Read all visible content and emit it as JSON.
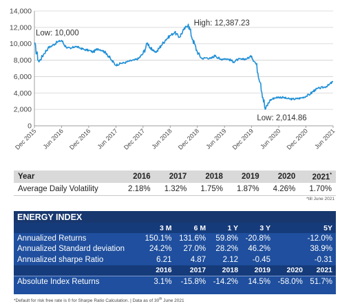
{
  "chart_data": {
    "type": "line",
    "title": "",
    "xlabel": "",
    "ylabel": "",
    "ylim": [
      0,
      14000
    ],
    "yticks": [
      0,
      2000,
      4000,
      6000,
      8000,
      10000,
      12000,
      14000
    ],
    "ytick_labels": [
      "0",
      "2,000",
      "4,000",
      "6,000",
      "8,000",
      "10,000",
      "12,000",
      "14,000"
    ],
    "xticks": [
      "Dec 2015",
      "Jun 2016",
      "Dec 2016",
      "Jun 2017",
      "Dec 2017",
      "Jun 2018",
      "Dec 2018",
      "Jun 2019",
      "Dec 2019",
      "Jun 2020",
      "Dec 2020",
      "Jun 2021"
    ],
    "line_color": "#1f8fd6",
    "series": [
      {
        "x": [
          "Dec 2015",
          "Jan 2016",
          "Feb 2016",
          "Mar 2016",
          "Apr 2016",
          "May 2016",
          "Jun 2016",
          "Jul 2016",
          "Aug 2016",
          "Sep 2016",
          "Oct 2016",
          "Nov 2016",
          "Dec 2016",
          "Jan 2017",
          "Feb 2017",
          "Mar 2017",
          "Apr 2017",
          "May 2017",
          "Jun 2017",
          "Jul 2017",
          "Aug 2017",
          "Sep 2017",
          "Oct 2017",
          "Nov 2017",
          "Dec 2017",
          "Jan 2018",
          "Feb 2018",
          "Mar 2018",
          "Apr 2018",
          "May 2018",
          "Jun 2018",
          "Jul 2018",
          "Aug 2018",
          "Sep 2018",
          "Oct 2018",
          "Nov 2018",
          "Dec 2018",
          "Jan 2019",
          "Feb 2019",
          "Mar 2019",
          "Apr 2019",
          "May 2019",
          "Jun 2019",
          "Jul 2019",
          "Aug 2019",
          "Sep 2019",
          "Oct 2019",
          "Nov 2019",
          "Dec 2019",
          "Jan 2020",
          "Feb 2020",
          "Mar 2020",
          "Apr 2020",
          "May 2020",
          "Jun 2020",
          "Jul 2020",
          "Aug 2020",
          "Sep 2020",
          "Oct 2020",
          "Nov 2020",
          "Dec 2020",
          "Jan 2021",
          "Feb 2021",
          "Mar 2021",
          "Apr 2021",
          "May 2021",
          "Jun 2021"
        ],
        "values": [
          10000,
          7800,
          8700,
          9500,
          9800,
          10200,
          10400,
          9600,
          9400,
          9700,
          9500,
          9300,
          9200,
          9000,
          9400,
          9200,
          8800,
          8000,
          7400,
          7600,
          7700,
          7900,
          8000,
          8200,
          8800,
          10100,
          9200,
          9000,
          9800,
          10500,
          11000,
          11400,
          10800,
          11700,
          12387.23,
          10500,
          9000,
          8200,
          8300,
          8200,
          8600,
          8100,
          8200,
          8100,
          7800,
          8100,
          8100,
          8200,
          8500,
          7500,
          5200,
          2014.86,
          3100,
          3400,
          3500,
          3450,
          3300,
          3250,
          3300,
          3400,
          3600,
          3900,
          4400,
          4600,
          4700,
          4950,
          5400
        ]
      }
    ],
    "annotations": [
      {
        "text": "High: 12,387.23",
        "x": "Oct 2018",
        "y": 12387.23
      },
      {
        "text": "Low: 10,000",
        "x": "Dec 2015",
        "y": 10000
      },
      {
        "text": "Low: 2,014.86",
        "x": "Mar 2020",
        "y": 2014.86
      }
    ]
  },
  "volatility": {
    "header_label": "Year",
    "years": [
      "2016",
      "2017",
      "2018",
      "2019",
      "2020",
      "2021"
    ],
    "last_year_mark": "*",
    "row_label": "Average Daily Volatility",
    "values": [
      "2.18%",
      "1.32%",
      "1.75%",
      "1.87%",
      "4.26%",
      "1.70%"
    ],
    "note": "*till June 2021"
  },
  "energy": {
    "title": "ENERGY INDEX",
    "periods": [
      "3 M",
      "6 M",
      "1 Y",
      "3 Y",
      "5Y"
    ],
    "rows": [
      {
        "label": "Annualized Returns",
        "values": [
          "150.1%",
          "131.6%",
          "59.8%",
          "-20.8%",
          "-12.0%"
        ]
      },
      {
        "label": "Annualized Standard deviation",
        "values": [
          "24.2%",
          "27.0%",
          "28.2%",
          "46.2%",
          "38.9%"
        ]
      },
      {
        "label": "Annualized sharpe Ratio",
        "values": [
          "6.21",
          "4.87",
          "2.12",
          "-0.45",
          "-0.31"
        ]
      }
    ],
    "years": [
      "2016",
      "2017",
      "2018",
      "2019",
      "2020",
      "2021"
    ],
    "abs_label": "Absolute Index Returns",
    "abs_values": [
      "3.1%",
      "-15.8%",
      "-14.2%",
      "14.5%",
      "-58.0%",
      "51.7%"
    ]
  },
  "footnote": {
    "main": "*Default for risk free rate is 0 for Sharpe Ratio Calculation. | Data as of 30",
    "sup": "th",
    "tail": " June 2021"
  }
}
